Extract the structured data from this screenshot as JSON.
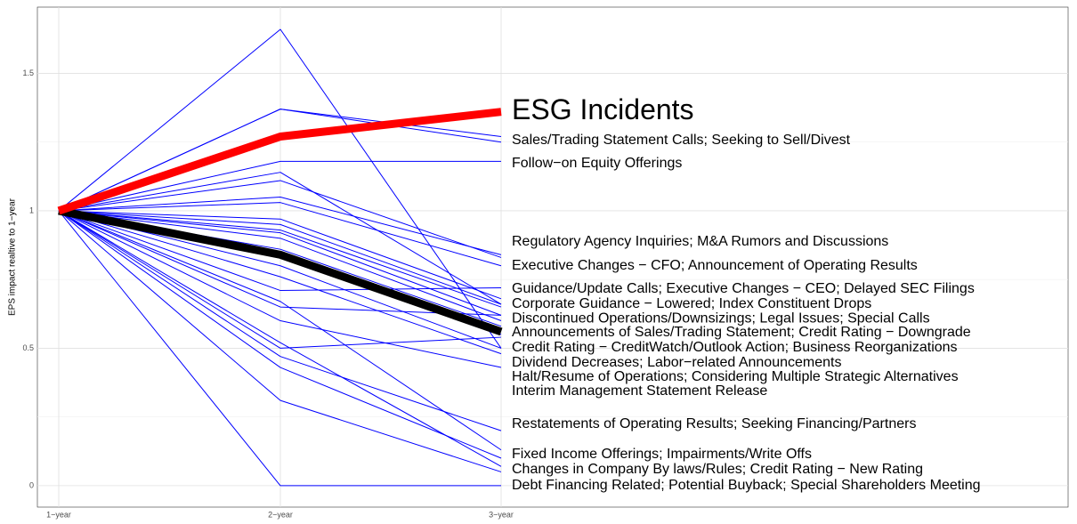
{
  "chart_data": {
    "type": "line",
    "y_label": "EPS impact realtive to 1−year",
    "categories": [
      "1−year",
      "2−year",
      "3−year"
    ],
    "ylim": [
      -0.078,
      1.741
    ],
    "yticks": [
      0.0,
      0.5,
      1.0,
      1.5
    ],
    "grid": true,
    "series": [
      {
        "color": "#0000ff",
        "values": [
          1,
          1.66,
          0.5
        ]
      },
      {
        "color": "#0000ff",
        "values": [
          1,
          1.37,
          1.27
        ]
      },
      {
        "color": "#0000ff",
        "values": [
          1,
          1.37,
          1.25
        ]
      },
      {
        "color": "#0000ff",
        "values": [
          1,
          1.18,
          1.18
        ]
      },
      {
        "color": "#0000ff",
        "values": [
          1,
          1.14,
          0.66
        ]
      },
      {
        "color": "#0000ff",
        "values": [
          1,
          1.11,
          0.83
        ]
      },
      {
        "color": "#0000ff",
        "values": [
          1,
          1.05,
          0.84
        ]
      },
      {
        "color": "#0000ff",
        "values": [
          1,
          1.03,
          0.8
        ]
      },
      {
        "color": "#0000ff",
        "values": [
          1,
          0.97,
          0.68
        ]
      },
      {
        "color": "#0000ff",
        "values": [
          1,
          0.95,
          0.66
        ]
      },
      {
        "color": "#0000ff",
        "values": [
          1,
          0.93,
          0.65
        ]
      },
      {
        "color": "#0000ff",
        "values": [
          1,
          0.92,
          0.62
        ]
      },
      {
        "color": "#0000ff",
        "values": [
          1,
          0.9,
          0.6
        ]
      },
      {
        "color": "#0000ff",
        "values": [
          1,
          0.86,
          0.58
        ]
      },
      {
        "color": "#0000ff",
        "values": [
          1,
          0.83,
          0.55
        ]
      },
      {
        "color": "#0000ff",
        "values": [
          1,
          0.8,
          0.5
        ]
      },
      {
        "color": "#0000ff",
        "values": [
          1,
          0.76,
          0.48
        ]
      },
      {
        "color": "#0000ff",
        "values": [
          1,
          0.71,
          0.72
        ]
      },
      {
        "color": "#0000ff",
        "values": [
          1,
          0.67,
          0.13
        ]
      },
      {
        "color": "#0000ff",
        "values": [
          1,
          0.65,
          0.62
        ]
      },
      {
        "color": "#0000ff",
        "values": [
          1,
          0.6,
          0.43
        ]
      },
      {
        "color": "#0000ff",
        "values": [
          1,
          0.52,
          0.07
        ]
      },
      {
        "color": "#0000ff",
        "values": [
          1,
          0.5,
          0.54
        ]
      },
      {
        "color": "#0000ff",
        "values": [
          1,
          0.47,
          0.2
        ]
      },
      {
        "color": "#0000ff",
        "values": [
          1,
          0.43,
          0.1
        ]
      },
      {
        "color": "#0000ff",
        "values": [
          1,
          0.31,
          0.05
        ]
      },
      {
        "color": "#0000ff",
        "values": [
          1,
          0,
          0
        ]
      },
      {
        "color": "#000000",
        "values": [
          1,
          0.84,
          0.56
        ]
      },
      {
        "name": "ESG Incidents",
        "color": "#ff0000",
        "values": [
          1,
          1.27,
          1.36
        ]
      }
    ],
    "annotations": [
      {
        "text": "Sales/Trading Statement Calls; Seeking to Sell/Divest",
        "y": 1.256
      },
      {
        "text": "Follow−on Equity Offerings",
        "y": 1.172
      },
      {
        "text": "Regulatory Agency Inquiries; M&A Rumors and Discussions",
        "y": 0.887
      },
      {
        "text": "Executive Changes − CFO; Announcement of Operating Results",
        "y": 0.8
      },
      {
        "text": "Guidance/Update Calls; Executive Changes − CEO; Delayed SEC Filings",
        "y": 0.715
      },
      {
        "text": "Corporate Guidance − Lowered; Index Constituent Drops",
        "y": 0.66
      },
      {
        "text": "Discontinued Operations/Downsizings; Legal Issues; Special Calls",
        "y": 0.608
      },
      {
        "text": "Announcements of Sales/Trading Statement; Credit Rating − Downgrade",
        "y": 0.557
      },
      {
        "text": "Credit Rating − CreditWatch/Outlook Action; Business Reorganizations",
        "y": 0.502
      },
      {
        "text": "Dividend Decreases; Labor−related Announcements",
        "y": 0.447
      },
      {
        "text": "Halt/Resume of Operations; Considering Multiple Strategic Alternatives",
        "y": 0.395
      },
      {
        "text": "Interim Management Statement Release",
        "y": 0.343
      },
      {
        "text": "Restatements of Operating Results; Seeking Financing/Partners",
        "y": 0.223
      },
      {
        "text": "Fixed Income Offerings; Impairments/Write Offs",
        "y": 0.113
      },
      {
        "text": "Changes in Company By laws/Rules; Credit Rating − New Rating",
        "y": 0.058
      },
      {
        "text": "Debt Financing Related; Potential Buyback; Special Shareholders Meeting",
        "y": 0.0
      }
    ]
  }
}
